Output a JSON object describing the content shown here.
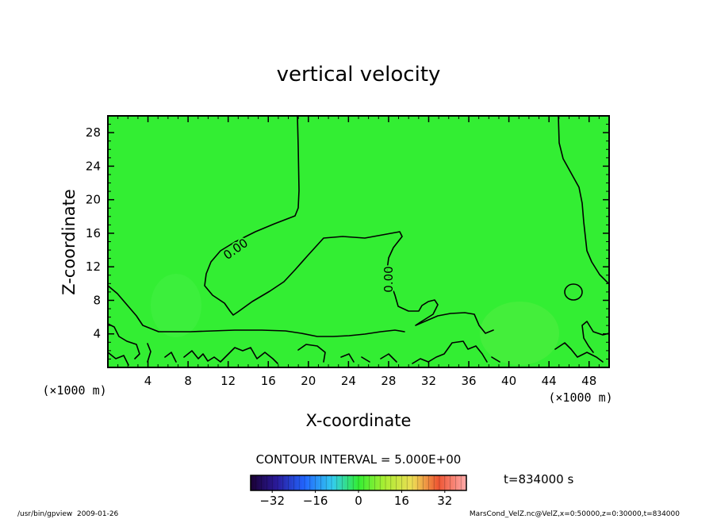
{
  "chart_data": {
    "type": "heatmap",
    "title": "vertical velocity",
    "xlabel": "X-coordinate",
    "ylabel": "Z-coordinate",
    "x_unit": "(×1000 m)",
    "y_unit": "(×1000 m)",
    "xlim": [
      0,
      50
    ],
    "ylim": [
      0,
      30
    ],
    "x_ticks": [
      4,
      8,
      12,
      16,
      20,
      24,
      28,
      32,
      36,
      40,
      44,
      48
    ],
    "y_ticks": [
      4,
      8,
      12,
      16,
      20,
      24,
      28
    ],
    "contour_labels": [
      "0.00",
      "0.00"
    ],
    "contour_interval_text": "CONTOUR INTERVAL = 5.000E+00",
    "time_text": "t=834000 s",
    "colorbar": {
      "range": [
        -40,
        40
      ],
      "ticks": [
        -32,
        -16,
        0,
        16,
        32
      ]
    },
    "field_color": "#33ee33"
  },
  "footer": {
    "left": "/usr/bin/gpview  2009-01-26",
    "right": "MarsCond_VelZ.nc@VelZ,x=0:50000,z=0:30000,t=834000"
  }
}
